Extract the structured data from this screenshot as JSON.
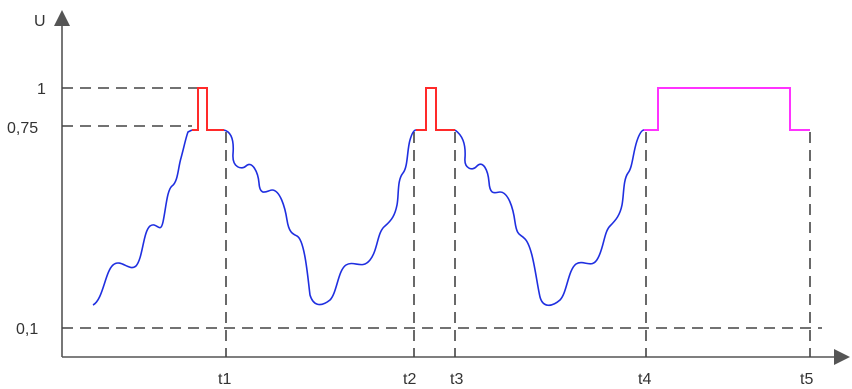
{
  "axis": {
    "y_label": "U"
  },
  "levels": [
    {
      "id": "level-1",
      "label": "1",
      "value": 1.0
    },
    {
      "id": "level-075",
      "label": "0,75",
      "value": 0.75
    },
    {
      "id": "level-01",
      "label": "0,1",
      "value": 0.1
    }
  ],
  "time_markers": [
    "t1",
    "t2",
    "t3",
    "t4",
    "t5"
  ],
  "colors": {
    "signal": "#1f2fe0",
    "pulse_short": "#ff2a2a",
    "pulse_long": "#ff33ff",
    "axis": "#555555",
    "dashed": "#444444"
  }
}
